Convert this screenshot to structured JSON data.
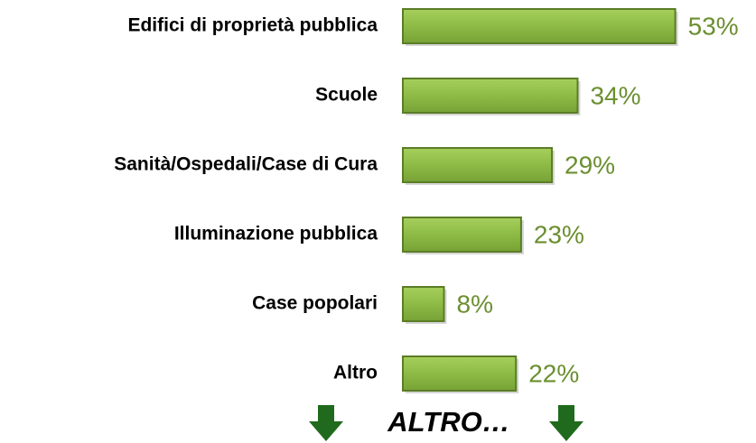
{
  "chart_data": {
    "type": "bar",
    "categories": [
      "Edifici di proprietà pubblica",
      "Scuole",
      "Sanità/Ospedali/Case di Cura",
      "Illuminazione pubblica",
      "Case popolari",
      "Altro"
    ],
    "values": [
      53,
      34,
      29,
      23,
      8,
      22
    ],
    "value_labels": [
      "53%",
      "34%",
      "29%",
      "23%",
      "8%",
      "22%"
    ],
    "color": "#8dbb45",
    "xlim": [
      0,
      55
    ],
    "annotation": "ALTRO…"
  }
}
